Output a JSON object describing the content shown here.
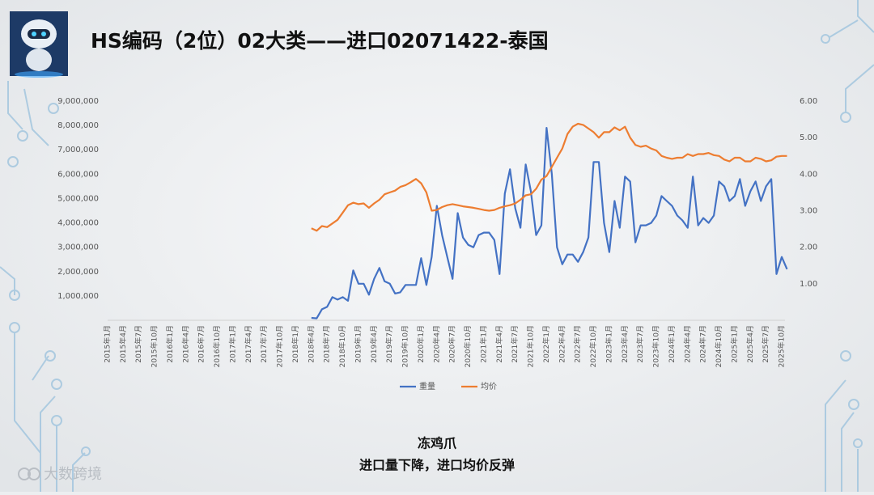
{
  "chart_data": {
    "type": "line",
    "title": "HS编码（2位）02大类——进口02071422-泰国",
    "subtitle": "冻鸡爪",
    "annotation": "进口量下降，进口均价反弹",
    "watermark": "大数跨境",
    "categories": [
      "2015年1月",
      null,
      null,
      "2015年4月",
      null,
      null,
      "2015年7月",
      null,
      null,
      "2015年10月",
      null,
      null,
      "2016年1月",
      null,
      null,
      "2016年4月",
      null,
      null,
      "2016年7月",
      null,
      null,
      "2016年10月",
      null,
      null,
      "2017年1月",
      null,
      null,
      "2017年4月",
      null,
      null,
      "2017年7月",
      null,
      null,
      "2017年10月",
      null,
      null,
      "2018年1月",
      null,
      null,
      "2018年4月",
      null,
      null,
      "2018年7月",
      null,
      null,
      "2018年10月",
      null,
      null,
      "2019年1月",
      null,
      null,
      "2019年4月",
      null,
      null,
      "2019年7月",
      null,
      null,
      "2019年10月",
      null,
      null,
      "2020年1月",
      null,
      null,
      "2020年4月",
      null,
      null,
      "2020年7月",
      null,
      null,
      "2020年10月",
      null,
      null,
      "2021年1月",
      null,
      null,
      "2021年4月",
      null,
      null,
      "2021年7月",
      null,
      null,
      "2021年10月",
      null,
      null,
      "2022年1月",
      null,
      null,
      "2022年4月",
      null,
      null,
      "2022年7月",
      null,
      null,
      "2022年10月",
      null,
      null,
      "2023年1月",
      null,
      null,
      "2023年4月",
      null,
      null,
      "2023年7月",
      null,
      null,
      "2023年10月",
      null,
      null,
      "2024年1月",
      null,
      null,
      "2024年4月",
      null,
      null,
      "2024年7月",
      null,
      null,
      "2024年10月",
      null,
      null,
      "2025年1月",
      null,
      null,
      "2025年4月",
      null,
      null,
      "2025年7月",
      null,
      null,
      "2025年10月",
      null
    ],
    "series": [
      {
        "name": "重量",
        "color": "#4472c4",
        "values": [
          null,
          null,
          null,
          null,
          null,
          null,
          null,
          null,
          null,
          null,
          null,
          null,
          null,
          null,
          null,
          null,
          null,
          null,
          null,
          null,
          null,
          null,
          null,
          null,
          null,
          null,
          null,
          null,
          null,
          null,
          null,
          null,
          null,
          null,
          null,
          null,
          null,
          null,
          null,
          100000,
          80000,
          450000,
          550000,
          950000,
          850000,
          950000,
          800000,
          2050000,
          1500000,
          1500000,
          1050000,
          1700000,
          2150000,
          1600000,
          1500000,
          1100000,
          1150000,
          1450000,
          1450000,
          1450000,
          2550000,
          1450000,
          2600000,
          4700000,
          3500000,
          2600000,
          1700000,
          4400000,
          3400000,
          3100000,
          3000000,
          3500000,
          3600000,
          3600000,
          3300000,
          1900000,
          5200000,
          6200000,
          4600000,
          3800000,
          6400000,
          5300000,
          3500000,
          3900000,
          7900000,
          6000000,
          3000000,
          2300000,
          2700000,
          2700000,
          2400000,
          2800000,
          3400000,
          6500000,
          6500000,
          4000000,
          2800000,
          4900000,
          3800000,
          5900000,
          5700000,
          3200000,
          3900000,
          3900000,
          4000000,
          4300000,
          5100000,
          4900000,
          4700000,
          4300000,
          4100000,
          3800000,
          5900000,
          3900000,
          4200000,
          4000000,
          4300000,
          5700000,
          5500000,
          4900000,
          5100000,
          5800000,
          4700000,
          5300000,
          5700000,
          4900000,
          5500000,
          5800000,
          1900000,
          2600000,
          2100000
        ]
      },
      {
        "name": "均价",
        "color": "#ed7d31",
        "axis": "y2",
        "values": [
          null,
          null,
          null,
          null,
          null,
          null,
          null,
          null,
          null,
          null,
          null,
          null,
          null,
          null,
          null,
          null,
          null,
          null,
          null,
          null,
          null,
          null,
          null,
          null,
          null,
          null,
          null,
          null,
          null,
          null,
          null,
          null,
          null,
          null,
          null,
          null,
          null,
          null,
          null,
          2.52,
          2.45,
          2.58,
          2.55,
          2.65,
          2.75,
          2.95,
          3.15,
          3.22,
          3.18,
          3.2,
          3.08,
          3.2,
          3.3,
          3.45,
          3.5,
          3.55,
          3.65,
          3.7,
          3.78,
          3.87,
          3.75,
          3.5,
          3.0,
          3.02,
          3.1,
          3.15,
          3.18,
          3.15,
          3.12,
          3.1,
          3.08,
          3.05,
          3.02,
          3.0,
          3.02,
          3.08,
          3.12,
          3.15,
          3.2,
          3.3,
          3.42,
          3.45,
          3.6,
          3.85,
          3.95,
          4.2,
          4.45,
          4.7,
          5.1,
          5.3,
          5.38,
          5.35,
          5.25,
          5.15,
          5.0,
          5.15,
          5.15,
          5.28,
          5.2,
          5.3,
          5.0,
          4.8,
          4.75,
          4.78,
          4.7,
          4.65,
          4.5,
          4.45,
          4.42,
          4.45,
          4.45,
          4.55,
          4.5,
          4.55,
          4.55,
          4.58,
          4.52,
          4.5,
          4.4,
          4.35,
          4.45,
          4.45,
          4.35,
          4.35,
          4.45,
          4.42,
          4.35,
          4.38,
          4.48,
          4.5,
          4.5
        ]
      }
    ],
    "ylim": [
      0,
      9000000
    ],
    "yticks": [
      {
        "value": 1000000,
        "label": "1,000,000"
      },
      {
        "value": 2000000,
        "label": "2,000,000"
      },
      {
        "value": 3000000,
        "label": "3,000,000"
      },
      {
        "value": 4000000,
        "label": "4,000,000"
      },
      {
        "value": 5000000,
        "label": "5,000,000"
      },
      {
        "value": 6000000,
        "label": "6,000,000"
      },
      {
        "value": 7000000,
        "label": "7,000,000"
      },
      {
        "value": 8000000,
        "label": "8,000,000"
      },
      {
        "value": 9000000,
        "label": "9,000,000"
      }
    ],
    "y2lim": [
      0,
      6
    ],
    "y2ticks": [
      {
        "value": 1,
        "label": "1.00"
      },
      {
        "value": 2,
        "label": "2.00"
      },
      {
        "value": 3,
        "label": "3.00"
      },
      {
        "value": 4,
        "label": "4.00"
      },
      {
        "value": 5,
        "label": "5.00"
      },
      {
        "value": 6,
        "label": "6.00"
      }
    ],
    "legend": "bottom"
  }
}
